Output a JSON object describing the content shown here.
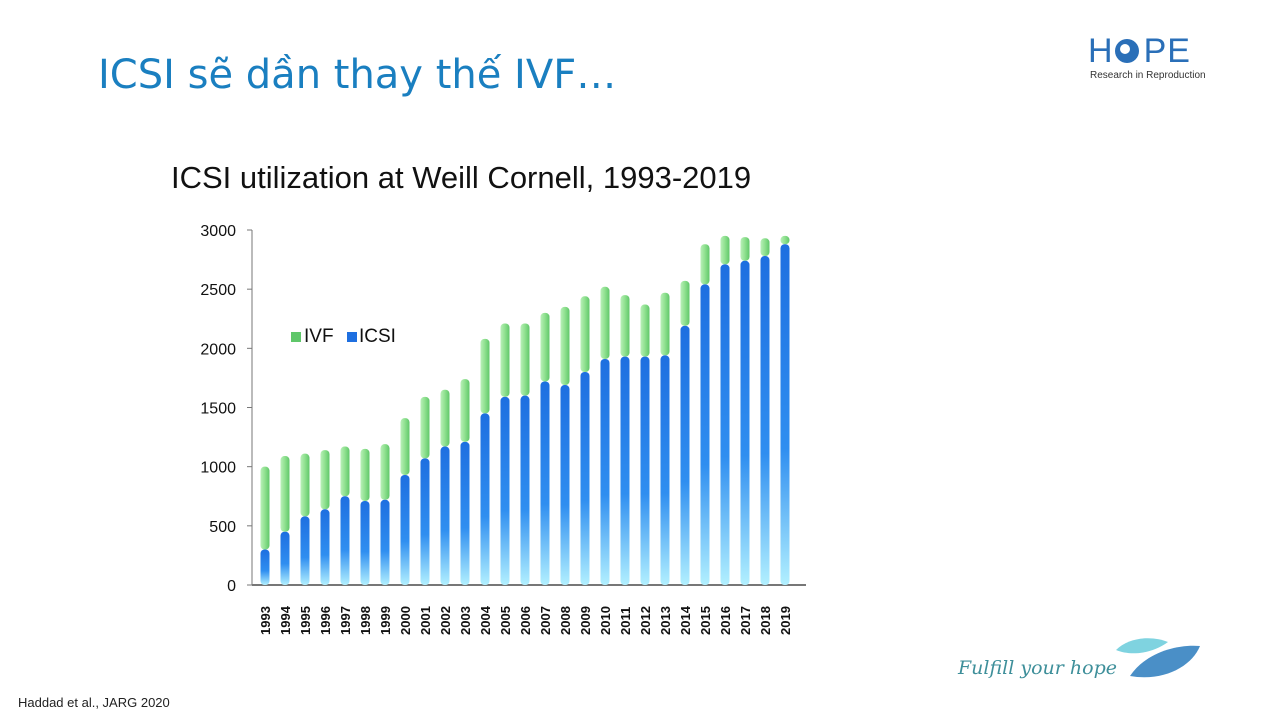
{
  "slide": {
    "title": "ICSI sẽ dần thay thế IVF…",
    "citation": "Haddad et al., JARG 2020",
    "tagline": "Fulfill your hope"
  },
  "logo": {
    "word_left": "H",
    "word_right": "PE",
    "subtitle": "Research in Reproduction",
    "color": "#2a6fb8"
  },
  "colors": {
    "title": "#1a7fc0",
    "ivf": "#8fdc8f",
    "icsi": "#1e6fe0",
    "icsi_light": "#a8ecff"
  },
  "chart_data": {
    "type": "bar",
    "stacked": true,
    "title": "ICSI utilization at Weill Cornell, 1993-2019",
    "xlabel": "",
    "ylabel": "",
    "ylim": [
      0,
      3000
    ],
    "yticks": [
      0,
      500,
      1000,
      1500,
      2000,
      2500,
      3000
    ],
    "legend_position": "top-left",
    "grid": false,
    "categories": [
      "1993",
      "1994",
      "1995",
      "1996",
      "1997",
      "1998",
      "1999",
      "2000",
      "2001",
      "2002",
      "2003",
      "2004",
      "2005",
      "2006",
      "2007",
      "2008",
      "2009",
      "2010",
      "2011",
      "2012",
      "2013",
      "2014",
      "2015",
      "2016",
      "2017",
      "2018",
      "2019"
    ],
    "series": [
      {
        "name": "ICSI",
        "values": [
          300,
          450,
          580,
          640,
          750,
          710,
          720,
          930,
          1070,
          1170,
          1210,
          1450,
          1590,
          1600,
          1720,
          1690,
          1800,
          1910,
          1930,
          1930,
          1940,
          2190,
          2540,
          2710,
          2740,
          2780,
          2880
        ]
      },
      {
        "name": "IVF",
        "values": [
          700,
          640,
          530,
          500,
          420,
          440,
          470,
          480,
          520,
          480,
          530,
          630,
          620,
          610,
          580,
          660,
          640,
          610,
          520,
          440,
          530,
          380,
          340,
          240,
          200,
          150,
          70
        ]
      }
    ]
  }
}
